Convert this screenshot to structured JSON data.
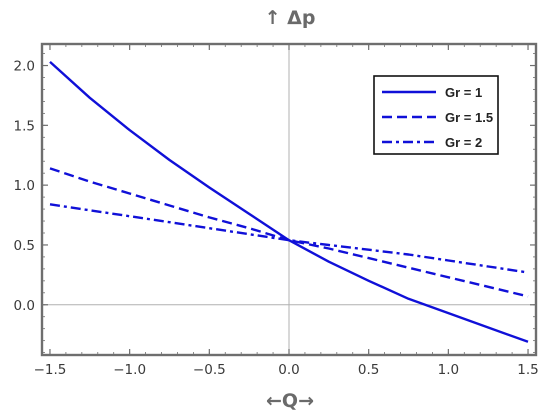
{
  "chart_data": {
    "type": "line",
    "title": "",
    "xlabel": "←Q→",
    "ylabel": "↑ Δp",
    "xlim": [
      -1.55,
      1.55
    ],
    "ylim": [
      -0.42,
      2.18
    ],
    "x_ticks": [
      -1.5,
      -1.0,
      -0.5,
      0.0,
      0.5,
      1.0,
      1.5
    ],
    "x_tick_labels": [
      "−1.5",
      "−1.0",
      "−0.5",
      "0.0",
      "0.5",
      "1.0",
      "1.5"
    ],
    "y_ticks": [
      0.0,
      0.5,
      1.0,
      1.5,
      2.0
    ],
    "y_tick_labels": [
      "0.0",
      "0.5",
      "1.0",
      "1.5",
      "2.0"
    ],
    "x": [
      -1.5,
      -1.25,
      -1.0,
      -0.75,
      -0.5,
      -0.25,
      0.0,
      0.25,
      0.5,
      0.75,
      1.0,
      1.25,
      1.5
    ],
    "series": [
      {
        "name": "Gr =  1",
        "style": "solid",
        "color": "#1010d8",
        "values": [
          2.03,
          1.73,
          1.46,
          1.21,
          0.98,
          0.76,
          0.54,
          0.36,
          0.2,
          0.05,
          -0.07,
          -0.19,
          -0.31
        ]
      },
      {
        "name": "Gr = 1.5",
        "style": "dashed",
        "color": "#1010d8",
        "values": [
          1.14,
          1.03,
          0.93,
          0.83,
          0.73,
          0.64,
          0.54,
          0.47,
          0.39,
          0.31,
          0.23,
          0.15,
          0.07
        ]
      },
      {
        "name": "Gr = 2",
        "style": "dashdot",
        "color": "#1010d8",
        "values": [
          0.84,
          0.79,
          0.74,
          0.69,
          0.64,
          0.59,
          0.54,
          0.5,
          0.46,
          0.42,
          0.37,
          0.32,
          0.27
        ]
      }
    ],
    "grid": false,
    "reference_lines": {
      "x": 0,
      "y": 0
    },
    "legend_position": "top-right",
    "frame_color": "#6e6e6e"
  }
}
